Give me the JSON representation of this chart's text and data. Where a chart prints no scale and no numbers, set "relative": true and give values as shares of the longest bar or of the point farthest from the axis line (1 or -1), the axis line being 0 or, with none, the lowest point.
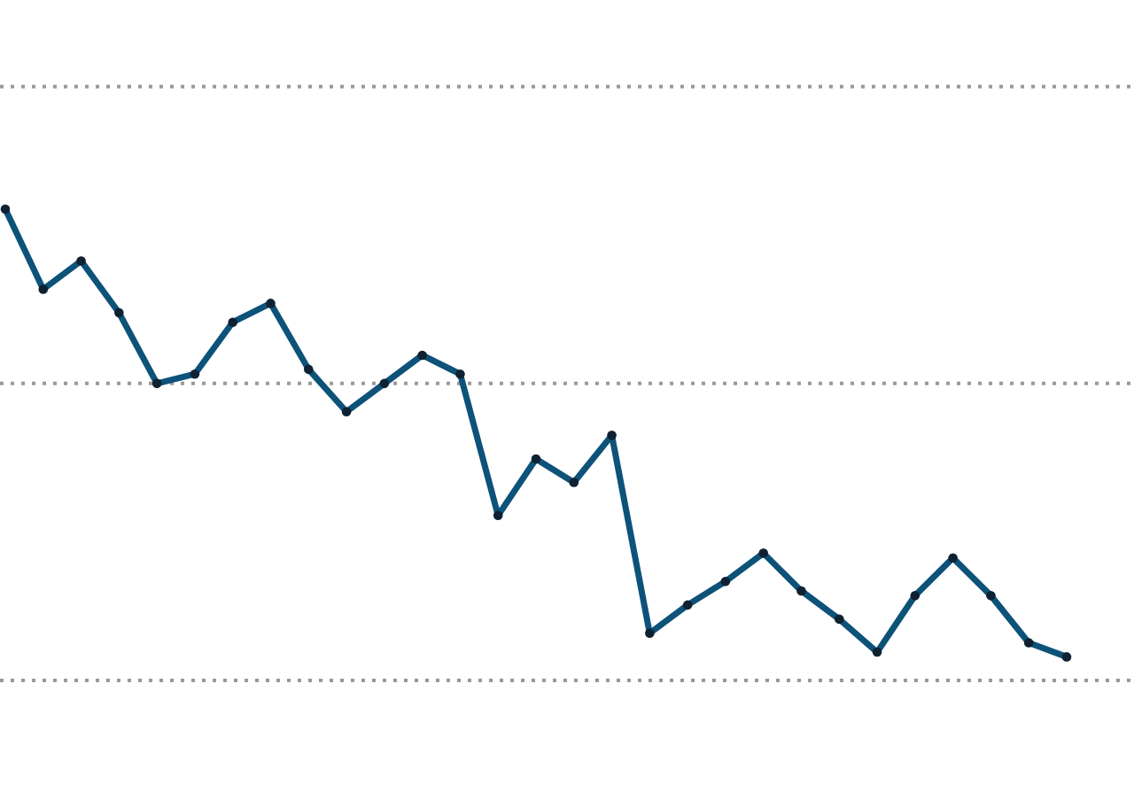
{
  "chart_data": {
    "type": "line",
    "relative": true,
    "categories": [
      null,
      null,
      null,
      null,
      null,
      null,
      null,
      null,
      null,
      null,
      null,
      null,
      null,
      null,
      null,
      null,
      null,
      null,
      null,
      null,
      null,
      null,
      null,
      null,
      null,
      null,
      null,
      null,
      null
    ],
    "marker": "circle",
    "line_style": "solid",
    "ref_lines": [
      {
        "axis": "y",
        "value": 0.63,
        "color": "#999999",
        "line_style": "dotted"
      },
      {
        "axis": "y",
        "value": 1.26,
        "color": "#999999",
        "line_style": "dotted"
      }
    ],
    "series": [
      {
        "color": "#0d5279",
        "values": [
          1.0,
          0.83,
          0.89,
          0.78,
          0.63,
          0.65,
          0.76,
          0.8,
          0.66,
          0.57,
          0.63,
          0.69,
          0.65,
          0.35,
          0.47,
          0.42,
          0.52,
          0.1,
          0.16,
          0.21,
          0.27,
          0.19,
          0.13,
          0.06,
          0.18,
          0.26,
          0.18,
          0.08,
          0.05
        ]
      }
    ]
  }
}
